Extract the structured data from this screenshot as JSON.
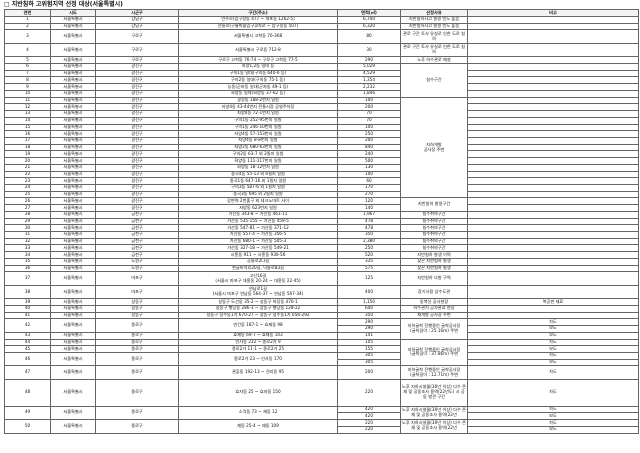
{
  "title": "□ 지반침하 고위험지역 선정 대상(서울특별시)",
  "headers": [
    "연번",
    "시도",
    "시군구",
    "구간(주소)",
    "면적(㎡)",
    "선정사유",
    "비고"
  ],
  "rows": [
    {
      "no": "1",
      "sido": "서울특별시",
      "sigungu": "강남구",
      "addr": "언주로(압구정동 477 ~ 개포동 1262-5)",
      "area": [
        "6,700"
      ],
      "note": [
        ""
      ],
      "reason": "지반침하사고 발생 빈도 높음"
    },
    {
      "no": "2",
      "sido": "서울특별시",
      "sigungu": "강남구",
      "addr": "선릉로(구룡마을입구교차로 ~ 압구정동 507)",
      "area": [
        "6,320"
      ],
      "note": [
        ""
      ],
      "reason": "지반침하사고 발생 빈도 높음"
    },
    {
      "no": "3",
      "sido": "서울특별시",
      "sigungu": "구로구",
      "addr": "서울특별시 고척동 76-368",
      "area": [
        "80"
      ],
      "note": [
        ""
      ],
      "reason": "관로 구간 토사 유실로 인한 도로 침하",
      "h": 2
    },
    {
      "no": "4",
      "sido": "서울특별시",
      "sigungu": "구로구",
      "addr": "서울특별시 구로동 712-8",
      "area": [
        "30"
      ],
      "note": [
        ""
      ],
      "reason": "관로 구간 토사 유실로 인한 도로 침하",
      "h": 2
    },
    {
      "no": "5",
      "sido": "서울특별시",
      "sigungu": "구로구",
      "addr": "구로구 고척동 76-74 ~ 구로구 고척동 77-5",
      "area": [
        "290"
      ],
      "note": [
        ""
      ],
      "reason": "노후 하수관로 매설"
    },
    {
      "no": "6",
      "sido": "서울특별시",
      "sigungu": "광진구",
      "addr": "자양1,2동 일대 등",
      "area": [
        "5,029"
      ],
      "note": [
        ""
      ]
    },
    {
      "no": "7",
      "sido": "서울특별시",
      "sigungu": "광진구",
      "addr": "구의1동 일대(구의동 640-6 등)",
      "area": [
        "4,529"
      ],
      "note": [
        ""
      ]
    },
    {
      "no": "8",
      "sido": "서울특별시",
      "sigungu": "광진구",
      "addr": "구의2동 일대(구의동 75-1 등)",
      "area": [
        "1,354"
      ],
      "note": [
        ""
      ]
    },
    {
      "no": "9",
      "sido": "서울특별시",
      "sigungu": "광진구",
      "addr": "능동(군자동 일대(군자동 49-1 등)",
      "area": [
        "2,232"
      ],
      "note": [
        ""
      ]
    },
    {
      "no": "10",
      "sido": "서울특별시",
      "sigungu": "광진구",
      "addr": "화양동 일대(화양동 37-62 등)",
      "area": [
        "1,846"
      ],
      "note": [
        ""
      ]
    },
    {
      "no": "11",
      "sido": "서울특별시",
      "sigungu": "광진구",
      "addr": "광장동 188-2번지 일원",
      "area": [
        "100"
      ],
      "note": [
        ""
      ]
    },
    {
      "no": "12",
      "sido": "서울특별시",
      "sigungu": "광진구",
      "addr": "자양4동 43-44번지 전통시장 공영주차장",
      "area": [
        "200"
      ],
      "note": [
        ""
      ]
    },
    {
      "no": "13",
      "sido": "서울특별시",
      "sigungu": "광진구",
      "addr": "자양4동 72-1번지 일원",
      "area": [
        "70"
      ],
      "note": [
        ""
      ]
    },
    {
      "no": "14",
      "sido": "서울특별시",
      "sigungu": "광진구",
      "addr": "구의1동 252-95번지 일원",
      "area": [
        "70"
      ],
      "note": [
        ""
      ]
    },
    {
      "no": "15",
      "sido": "서울특별시",
      "sigungu": "광진구",
      "addr": "구의1동 246-10번지 일원",
      "area": [
        "100"
      ],
      "note": [
        ""
      ]
    },
    {
      "no": "16",
      "sido": "서울특별시",
      "sigungu": "광진구",
      "addr": "자양4동 57-153번지 일원",
      "area": [
        "250"
      ],
      "note": [
        ""
      ]
    },
    {
      "no": "17",
      "sido": "서울특별시",
      "sigungu": "광진구",
      "addr": "자양4동 8-8번지 일원",
      "area": [
        "200"
      ],
      "note": [
        ""
      ]
    },
    {
      "no": "18",
      "sido": "서울특별시",
      "sigungu": "광진구",
      "addr": "자양2동 680-63번지 일원",
      "area": [
        "840"
      ],
      "note": [
        ""
      ]
    },
    {
      "no": "19",
      "sido": "서울특별시",
      "sigungu": "광진구",
      "addr": "구의2동 63-7 외 2필지 일원",
      "area": [
        "240"
      ],
      "note": [
        ""
      ]
    },
    {
      "no": "20",
      "sido": "서울특별시",
      "sigungu": "광진구",
      "addr": "화양동 111-117번지 일원",
      "area": [
        "500"
      ],
      "note": [
        ""
      ]
    },
    {
      "no": "21",
      "sido": "서울특별시",
      "sigungu": "광진구",
      "addr": "화양동 18-12번지 일원",
      "area": [
        "130"
      ],
      "note": [
        ""
      ]
    },
    {
      "no": "22",
      "sido": "서울특별시",
      "sigungu": "광진구",
      "addr": "중곡4동 55-13 외 6필지 일원",
      "area": [
        "100"
      ],
      "note": [
        ""
      ]
    },
    {
      "no": "23",
      "sido": "서울특별시",
      "sigungu": "광진구",
      "addr": "중곡1동 647-16 외 1필지 일원",
      "area": [
        "60"
      ],
      "note": [
        ""
      ]
    },
    {
      "no": "24",
      "sido": "서울특별시",
      "sigungu": "광진구",
      "addr": "구의3동 587-6 외 1필지 일원",
      "area": [
        "170"
      ],
      "note": [
        ""
      ]
    },
    {
      "no": "25",
      "sido": "서울특별시",
      "sigungu": "광진구",
      "addr": "중곡3동 695 외 2필지 일원",
      "area": [
        "270"
      ],
      "note": [
        ""
      ]
    },
    {
      "no": "26",
      "sido": "서울특별시",
      "sigungu": "광진구",
      "addr": "강변역 2번출구 외 테크노마트 사이",
      "area": [
        "120"
      ],
      "note": [
        ""
      ]
    },
    {
      "no": "27",
      "sido": "서울특별시",
      "sigungu": "광진구",
      "addr": "자양동 623번지 일원",
      "area": [
        "140"
      ],
      "note": [
        ""
      ]
    },
    {
      "no": "28",
      "sido": "서울특별시",
      "sigungu": "금천구",
      "addr": "가산동 343-8 ~ 가산동 461-11",
      "area": [
        "1,967"
      ],
      "note": [
        ""
      ],
      "reason": "침수취약구간"
    },
    {
      "no": "29",
      "sido": "서울특별시",
      "sigungu": "금천구",
      "addr": "가산동 535-155 ~ 가산동 459-5",
      "area": [
        "478"
      ],
      "note": [
        ""
      ],
      "reason": "침수취약구간"
    },
    {
      "no": "30",
      "sido": "서울특별시",
      "sigungu": "금천구",
      "addr": "가산동 547-81 ~ 가산동 371-12",
      "area": [
        "478"
      ],
      "note": [
        ""
      ],
      "reason": "침수취약구간"
    },
    {
      "no": "31",
      "sido": "서울특별시",
      "sigungu": "금천구",
      "addr": "가산동 557-4 ~ 가산동 356-5",
      "area": [
        "350"
      ],
      "note": [
        ""
      ],
      "reason": "침수취약구간"
    },
    {
      "no": "32",
      "sido": "서울특별시",
      "sigungu": "금천구",
      "addr": "가산동 680-1 ~ 가산동 505-3",
      "area": [
        "2,380"
      ],
      "note": [
        ""
      ],
      "reason": "침수취약구간"
    },
    {
      "no": "33",
      "sido": "서울특별시",
      "sigungu": "금천구",
      "addr": "가산동 327-18 ~ 가산동 549-21",
      "area": [
        "250"
      ],
      "note": [
        ""
      ],
      "reason": "침수취약구간"
    },
    {
      "no": "34",
      "sido": "서울특별시",
      "sigungu": "금천구",
      "addr": "시흥동 911 ~ 시흥동 930-56",
      "area": [
        "520"
      ],
      "note": [
        ""
      ],
      "reason": "지반침하 발생 이력"
    },
    {
      "no": "35",
      "sido": "서울특별시",
      "sigungu": "노원구",
      "addr": "공릉로2나길",
      "area": [
        "335"
      ],
      "note": [
        ""
      ],
      "reason": "잦은 지반침하 발생"
    },
    {
      "no": "36",
      "sido": "서울특별시",
      "sigungu": "노원구",
      "addr": "한글비석로20길, 덕릉로83길",
      "area": [
        "575"
      ],
      "note": [
        ""
      ],
      "reason": "잦은 지반침하 발생"
    },
    {
      "no": "37",
      "sido": "서울특별시",
      "sigungu": "마포구",
      "addr": "고산16길\n(서울시 마포구 대흥동 20-24 ~ 대흥동 22-45)",
      "area": [
        "125"
      ],
      "note": [
        ""
      ],
      "reason": "지반침하 다발 구역",
      "h": 2
    },
    {
      "no": "38",
      "sido": "서울특별시",
      "sigungu": "마포구",
      "addr": "연남로1길\n(서울시 마포구 연남동 564-37 ~ 연남동 567-34)",
      "area": [
        "400"
      ],
      "note": [
        ""
      ],
      "reason": "장기사용 상수도관",
      "h": 2
    },
    {
      "no": "39",
      "sido": "서울특별시",
      "sigungu": "성동구",
      "addr": "성동구 도선동 35-2 ~ 성동구 마장동 470-1",
      "area": [
        "1,150"
      ],
      "note": [
        "복공판 재료"
      ],
      "reason": "동북선 공사현장"
    },
    {
      "no": "40",
      "sido": "서울특별시",
      "sigungu": "성동구",
      "addr": "성동구 행당동 286-3 ~ 성동구 행당동 128-22",
      "area": [
        "640"
      ],
      "note": [
        ""
      ],
      "reason": "하수관거 공사완료 현장"
    },
    {
      "no": "41",
      "sido": "서울특별시",
      "sigungu": "성동구",
      "addr": "성동구 성수동1가 670-27 ~ 성동구 성수동1가 656-292",
      "area": [
        "350"
      ],
      "note": [
        ""
      ],
      "reason": "재개발 공사장 주변"
    },
    {
      "no": "42",
      "sido": "서울특별시",
      "sigungu": "종로구",
      "addr": "연건동 187-1 ~ 효제동 98",
      "area": [
        "290",
        "290"
      ],
      "note": [
        "차도",
        "보도"
      ],
      "h": 2
    },
    {
      "no": "43",
      "sido": "서울특별시",
      "sigungu": "종로구",
      "addr": "효제동 69-7 ~ 효제동 103",
      "area": [
        "141"
      ],
      "note": [
        "보도"
      ]
    },
    {
      "no": "44",
      "sido": "서울특별시",
      "sigungu": "종로구",
      "addr": "인사동 232 ~ 종로2가 9",
      "area": [
        "105"
      ],
      "note": [
        "차도"
      ]
    },
    {
      "no": "45",
      "sido": "서울특별시",
      "sigungu": "종로구",
      "addr": "종로2가 11-1 ~ 종로2가 25",
      "area": [
        "155"
      ],
      "note": [
        "보도"
      ]
    },
    {
      "no": "46",
      "sido": "서울특별시",
      "sigungu": "종로구",
      "addr": "종로2가 23 ~ 인사동 170",
      "area": [
        "305",
        "305"
      ],
      "note": [
        "차도",
        "보도"
      ],
      "h": 2
    },
    {
      "no": "47",
      "sido": "서울특별시",
      "sigungu": "종로구",
      "addr": "관훈동 192-13 ~ 견지동 95",
      "area": [
        "200"
      ],
      "note": [
        "차도"
      ],
      "reason": "지하굴착 진행중인 굴착공사장\n(굴착길이 : 12.71m) 주변",
      "h": 2
    },
    {
      "no": "48",
      "sido": "서울특별시",
      "sigungu": "종로구",
      "addr": "효자동 25 ~ 효자동 150",
      "area": [
        "220"
      ],
      "note": [
        "차도"
      ],
      "reason": "노후 지하시설물(30년 이상) 다수 존재 및 공동조사 용역(22년도) 시 공동 발견 구간",
      "h": 4
    },
    {
      "no": "49",
      "sido": "서울특별시",
      "sigungu": "종로구",
      "addr": "소격동 73 ~ 재동 12",
      "area": [
        "420",
        "420"
      ],
      "note": [
        "차도",
        "보도"
      ],
      "reason": "노후 지하시설물(30년 이상) 다수 존재 및 공동조사 용역(22년",
      "h": 2
    },
    {
      "no": "50",
      "sido": "서울특별시",
      "sigungu": "종로구",
      "addr": "재동 25-4 ~ 재동 109",
      "area": [
        "220",
        "220"
      ],
      "note": [
        "차도",
        "보도"
      ],
      "reason": "노후 지하시설물(30년 이상) 다수 존재 및 공동조사 용역(22년",
      "h": 2
    }
  ],
  "reason_groups": [
    {
      "from": "6",
      "to": "10",
      "text": "침수구간"
    },
    {
      "from": "11",
      "to": "25",
      "text": "지하개발\n공사장 주변"
    },
    {
      "from": "26",
      "to": "27",
      "text": "지반침하 발생구간"
    },
    {
      "from": "42",
      "to": "43",
      "text": "지하굴착 진행중인 굴착공사장\n(굴착길이 : 25.16m) 주변"
    },
    {
      "from": "44",
      "to": "46",
      "text": "지하굴착 진행중인 굴착공사장\n(굴착길이 : 37.86m) 주변"
    }
  ]
}
